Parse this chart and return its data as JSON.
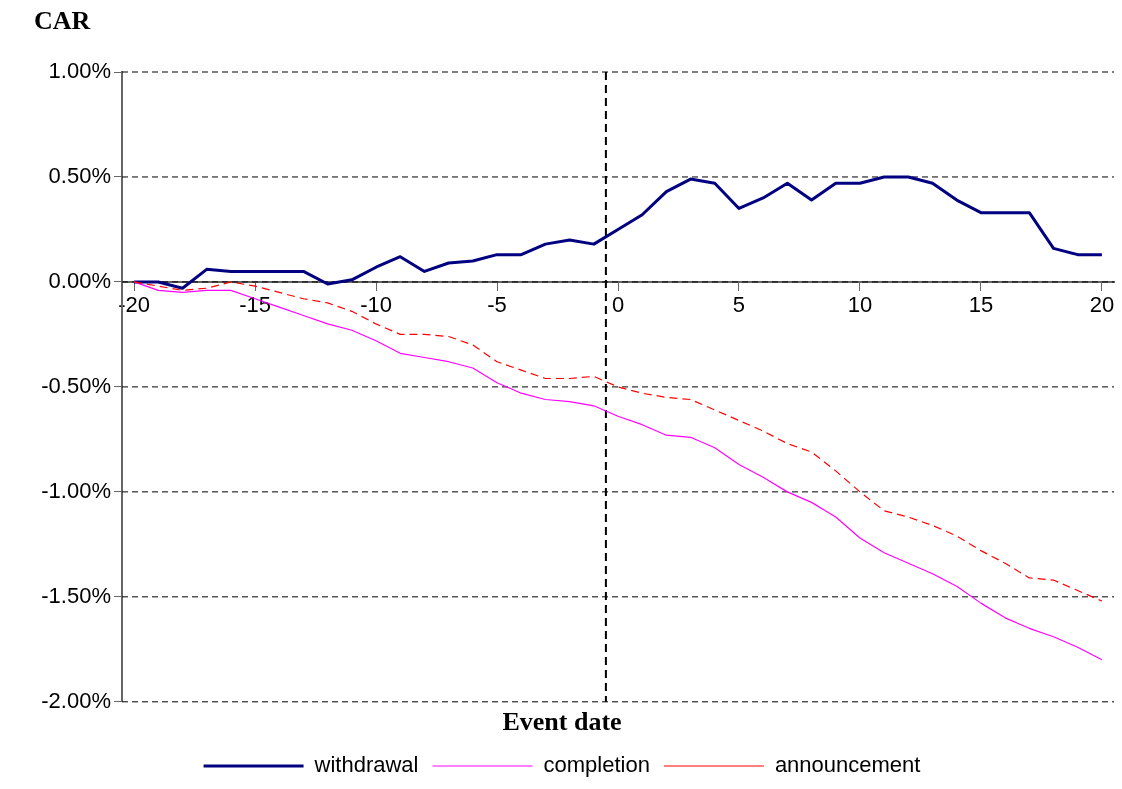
{
  "chart_data": {
    "type": "line",
    "ylabel": "CAR",
    "xlabel": "Event date",
    "x": [
      -20,
      -19,
      -18,
      -17,
      -16,
      -15,
      -14,
      -13,
      -12,
      -11,
      -10,
      -9,
      -8,
      -7,
      -6,
      -5,
      -4,
      -3,
      -2,
      -1,
      0,
      1,
      2,
      3,
      4,
      5,
      6,
      7,
      8,
      9,
      10,
      11,
      12,
      13,
      14,
      15,
      16,
      17,
      18,
      19,
      20
    ],
    "xlim": [
      -20.5,
      20.5
    ],
    "xticks": [
      -20,
      -15,
      -10,
      -5,
      0,
      5,
      10,
      15,
      20
    ],
    "ylim": [
      -2,
      1
    ],
    "yticks": [
      {
        "value": 1,
        "label": "1.00%"
      },
      {
        "value": 0.5,
        "label": "0.50%"
      },
      {
        "value": 0,
        "label": "0.00%"
      },
      {
        "value": -0.5,
        "label": "-0.50%"
      },
      {
        "value": -1,
        "label": "-1.00%"
      },
      {
        "value": -1.5,
        "label": "-1.50%"
      },
      {
        "value": -2,
        "label": "-2.00%"
      }
    ],
    "grid": "y",
    "legend": "bottom",
    "marker": "none",
    "ref_lines": [
      {
        "axis": "x",
        "value": -0.5,
        "color": "#000000",
        "line_style": "dashed"
      }
    ],
    "series": [
      {
        "name": "withdrawal",
        "color": "#000080",
        "line_style": "solid",
        "values": [
          0,
          0,
          -0.03,
          0.06,
          0.05,
          0.05,
          0.05,
          0.05,
          -0.01,
          0.01,
          0.07,
          0.12,
          0.05,
          0.09,
          0.1,
          0.13,
          0.13,
          0.18,
          0.2,
          0.18,
          0.25,
          0.32,
          0.43,
          0.49,
          0.47,
          0.35,
          0.4,
          0.47,
          0.39,
          0.47,
          0.47,
          0.5,
          0.5,
          0.47,
          0.39,
          0.33,
          0.33,
          0.33,
          0.16,
          0.13,
          0.13
        ]
      },
      {
        "name": "completion",
        "color": "#ff00ff",
        "line_style": "solid",
        "values": [
          0,
          -0.04,
          -0.05,
          -0.04,
          -0.04,
          -0.08,
          -0.12,
          -0.16,
          -0.2,
          -0.23,
          -0.28,
          -0.34,
          -0.36,
          -0.38,
          -0.41,
          -0.48,
          -0.53,
          -0.56,
          -0.57,
          -0.59,
          -0.64,
          -0.68,
          -0.73,
          -0.74,
          -0.79,
          -0.87,
          -0.93,
          -1.0,
          -1.05,
          -1.12,
          -1.22,
          -1.29,
          -1.34,
          -1.39,
          -1.45,
          -1.53,
          -1.6,
          -1.65,
          -1.69,
          -1.74,
          -1.8
        ]
      },
      {
        "name": "announcement",
        "color": "#ff0000",
        "line_style": "dashed",
        "values": [
          0,
          -0.02,
          -0.04,
          -0.03,
          0,
          -0.02,
          -0.05,
          -0.08,
          -0.1,
          -0.14,
          -0.2,
          -0.25,
          -0.25,
          -0.26,
          -0.3,
          -0.38,
          -0.42,
          -0.46,
          -0.46,
          -0.45,
          -0.5,
          -0.53,
          -0.55,
          -0.56,
          -0.61,
          -0.66,
          -0.71,
          -0.77,
          -0.81,
          -0.9,
          -1.0,
          -1.09,
          -1.12,
          -1.16,
          -1.21,
          -1.28,
          -1.34,
          -1.41,
          -1.42,
          -1.47,
          -1.52
        ]
      }
    ]
  }
}
